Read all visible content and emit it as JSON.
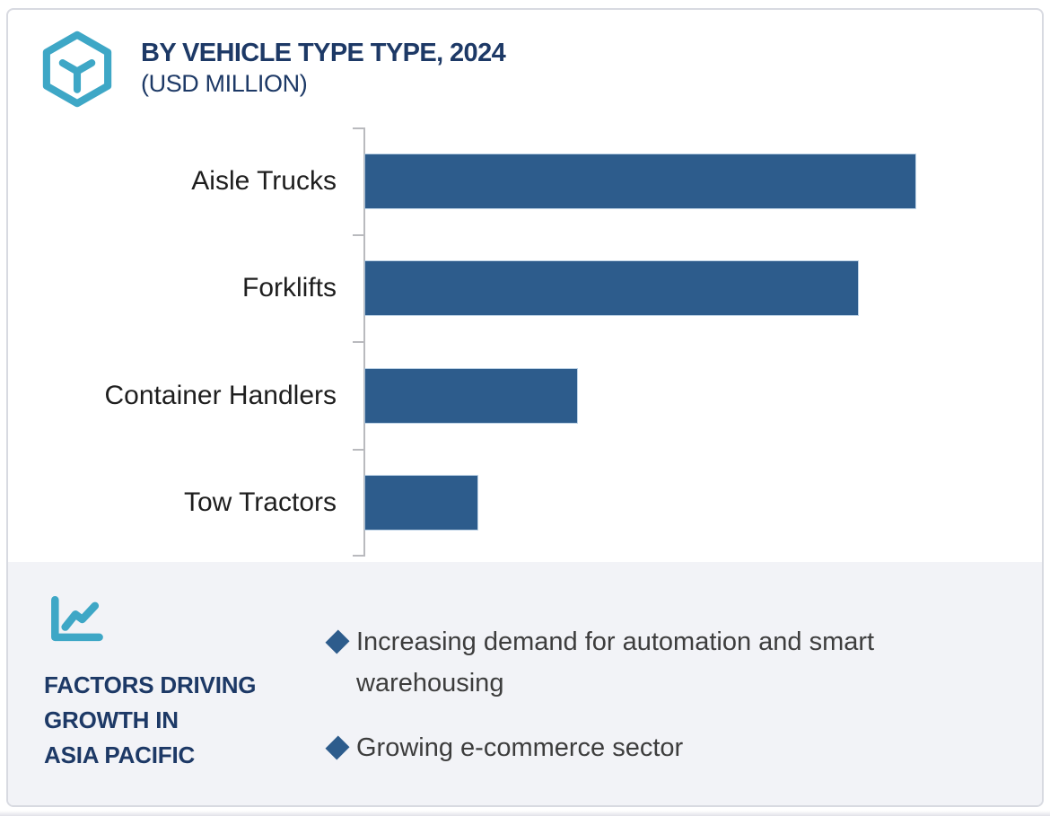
{
  "header": {
    "title": "BY VEHICLE TYPE TYPE, 2024",
    "subtitle": "(USD MILLION)",
    "icon": "hexagon-cube-icon"
  },
  "chart_data": {
    "type": "bar",
    "orientation": "horizontal",
    "title": "BY VEHICLE TYPE TYPE, 2024",
    "unit": "USD MILLION",
    "categories": [
      "Aisle Trucks",
      "Forklifts",
      "Container Handlers",
      "Tow Tractors"
    ],
    "values_relative_pct": [
      100,
      89.6,
      38.5,
      20.4
    ],
    "value_labels_shown": false,
    "axis": {
      "numeric_labels_shown": false,
      "gridlines": false,
      "baseline": "left vertical axis with category ticks"
    },
    "legend": "none"
  },
  "factors": {
    "icon": "line-chart-icon",
    "title_lines": [
      "FACTORS DRIVING",
      "GROWTH IN",
      "ASIA PACIFIC"
    ],
    "bullets": [
      "Increasing demand for automation and smart warehousing",
      "Growing e-commerce sector"
    ]
  },
  "colors": {
    "accent_teal": "#3ea7c6",
    "navy": "#1d3966",
    "bar_blue": "#2d5c8c",
    "panel_bg": "#f2f3f7",
    "axis_gray": "#b9babe",
    "bullet_text": "#3d3d3d",
    "card_border": "#d8dae1"
  }
}
